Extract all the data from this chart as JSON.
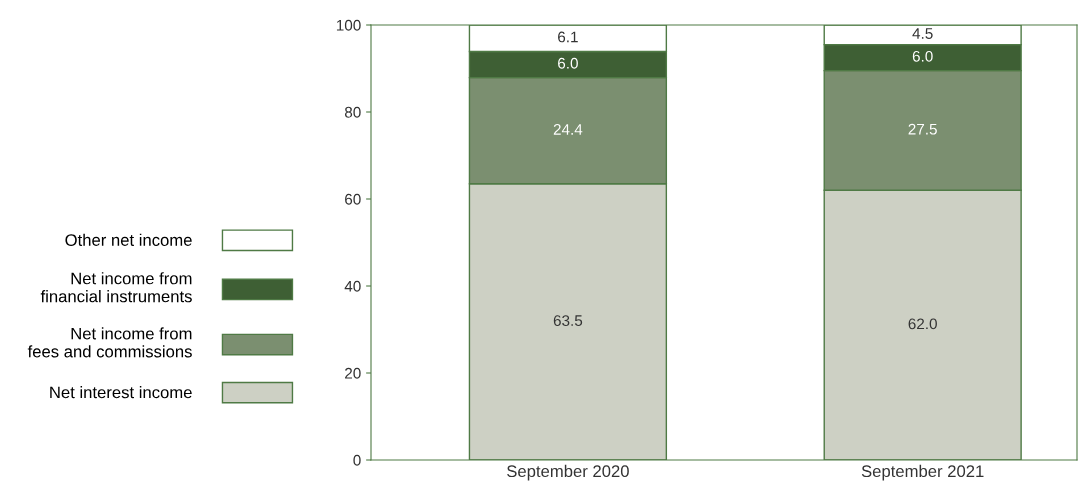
{
  "chart_data": {
    "type": "bar",
    "stacked": true,
    "categories": [
      "September 2020",
      "September 2021"
    ],
    "series": [
      {
        "name": "Net interest income",
        "color": "#cdd0c4",
        "values": [
          63.5,
          62.0
        ],
        "value_labels": [
          "63.5",
          "62.0"
        ]
      },
      {
        "name": "Net income from\nfees and commissions",
        "color": "#7b8f70",
        "values": [
          24.4,
          27.5
        ],
        "value_labels": [
          "24.4",
          "27.5"
        ]
      },
      {
        "name": "Net income from\nfinancial instruments",
        "color": "#3e5f34",
        "values": [
          6.0,
          6.0
        ],
        "value_labels": [
          "6.0",
          "6.0"
        ]
      },
      {
        "name": "Other net income",
        "color": "#ffffff",
        "values": [
          6.1,
          4.5
        ],
        "value_labels": [
          "6.1",
          "4.5"
        ]
      }
    ],
    "ylim": [
      0,
      100
    ],
    "yticks": [
      0,
      20,
      40,
      60,
      80,
      100
    ],
    "grid": false,
    "legend": "left"
  }
}
